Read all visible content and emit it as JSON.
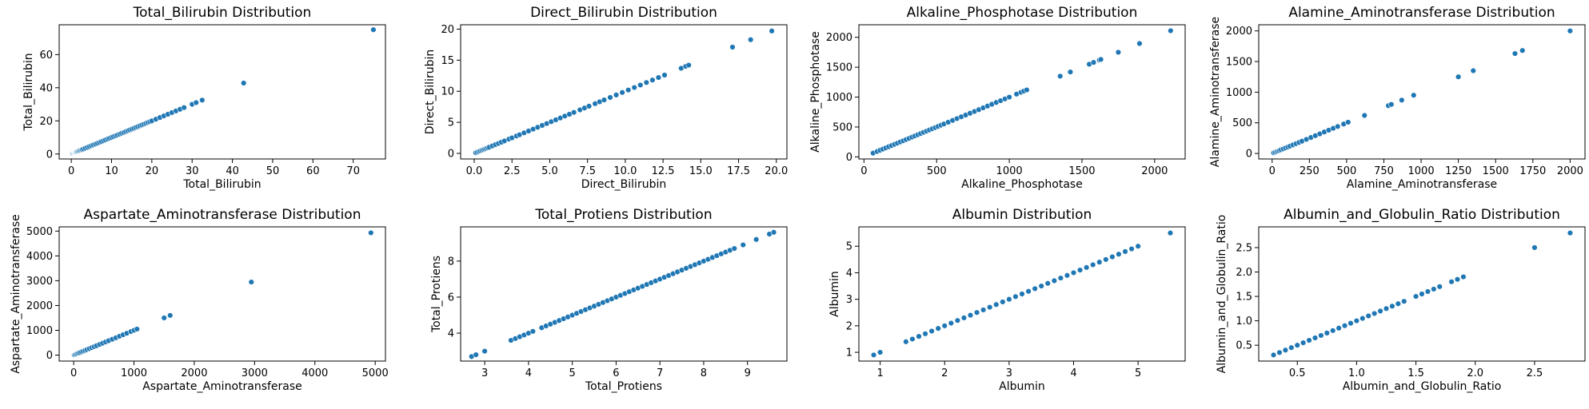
{
  "colors": {
    "point": "#1f77b4",
    "axis": "#000000",
    "background": "#ffffff"
  },
  "chart_data": [
    {
      "type": "scatter",
      "title": "Total_Bilirubin Distribution",
      "xlabel": "Total_Bilirubin",
      "ylabel": "Total_Bilirubin",
      "xlim": [
        -3.0,
        78.0
      ],
      "ylim": [
        -3.0,
        78.0
      ],
      "xticks": [
        0,
        10,
        20,
        30,
        40,
        50,
        60,
        70
      ],
      "yticks": [
        0,
        20,
        40,
        60
      ],
      "xticklabels": [
        "0",
        "10",
        "20",
        "30",
        "40",
        "50",
        "60",
        "70"
      ],
      "yticklabels": [
        "0",
        "20",
        "40",
        "60"
      ],
      "x": [
        0.4,
        0.6,
        0.7,
        0.8,
        0.9,
        1.0,
        1.1,
        1.2,
        1.3,
        1.4,
        1.6,
        1.8,
        2.0,
        2.2,
        2.5,
        2.7,
        3.0,
        3.5,
        4.0,
        4.5,
        5.0,
        5.5,
        6.0,
        6.5,
        7.0,
        7.5,
        8.0,
        8.5,
        9.0,
        9.5,
        10.0,
        10.5,
        11.0,
        11.5,
        12.0,
        12.5,
        13.0,
        13.5,
        14.0,
        14.5,
        15.0,
        15.5,
        16.0,
        16.5,
        17.0,
        17.5,
        18.0,
        18.5,
        19.0,
        19.5,
        20.0,
        21.0,
        22.0,
        23.0,
        24.0,
        25.0,
        26.0,
        27.0,
        28.0,
        30.0,
        31.0,
        32.5,
        42.8,
        75.0
      ],
      "y": [
        0.4,
        0.6,
        0.7,
        0.8,
        0.9,
        1.0,
        1.1,
        1.2,
        1.3,
        1.4,
        1.6,
        1.8,
        2.0,
        2.2,
        2.5,
        2.7,
        3.0,
        3.5,
        4.0,
        4.5,
        5.0,
        5.5,
        6.0,
        6.5,
        7.0,
        7.5,
        8.0,
        8.5,
        9.0,
        9.5,
        10.0,
        10.5,
        11.0,
        11.5,
        12.0,
        12.5,
        13.0,
        13.5,
        14.0,
        14.5,
        15.0,
        15.5,
        16.0,
        16.5,
        17.0,
        17.5,
        18.0,
        18.5,
        19.0,
        19.5,
        20.0,
        21.0,
        22.0,
        23.0,
        24.0,
        25.0,
        26.0,
        27.0,
        28.0,
        30.0,
        31.0,
        32.5,
        42.8,
        75.0
      ]
    },
    {
      "type": "scatter",
      "title": "Direct_Bilirubin Distribution",
      "xlabel": "Direct_Bilirubin",
      "ylabel": "Direct_Bilirubin",
      "xlim": [
        -0.9,
        20.7
      ],
      "ylim": [
        -0.9,
        20.7
      ],
      "xticks": [
        0,
        2.5,
        5,
        7.5,
        10,
        12.5,
        15,
        17.5,
        20
      ],
      "yticks": [
        0,
        5,
        10,
        15,
        20
      ],
      "xticklabels": [
        "0.0",
        "2.5",
        "5.0",
        "7.5",
        "10.0",
        "12.5",
        "15.0",
        "17.5",
        "20.0"
      ],
      "yticklabels": [
        "0",
        "5",
        "10",
        "15",
        "20"
      ],
      "x": [
        0.1,
        0.2,
        0.3,
        0.4,
        0.5,
        0.6,
        0.7,
        0.8,
        0.9,
        1.0,
        1.2,
        1.4,
        1.6,
        1.8,
        2.0,
        2.3,
        2.5,
        2.8,
        3.0,
        3.3,
        3.6,
        3.9,
        4.2,
        4.5,
        4.8,
        5.1,
        5.4,
        5.7,
        6.0,
        6.3,
        6.6,
        7.0,
        7.3,
        7.6,
        8.0,
        8.3,
        8.6,
        9.0,
        9.4,
        9.8,
        10.2,
        10.6,
        11.0,
        11.4,
        11.8,
        12.2,
        12.6,
        13.7,
        14.0,
        14.2,
        17.1,
        18.3,
        19.7
      ],
      "y": [
        0.1,
        0.2,
        0.3,
        0.4,
        0.5,
        0.6,
        0.7,
        0.8,
        0.9,
        1.0,
        1.2,
        1.4,
        1.6,
        1.8,
        2.0,
        2.3,
        2.5,
        2.8,
        3.0,
        3.3,
        3.6,
        3.9,
        4.2,
        4.5,
        4.8,
        5.1,
        5.4,
        5.7,
        6.0,
        6.3,
        6.6,
        7.0,
        7.3,
        7.6,
        8.0,
        8.3,
        8.6,
        9.0,
        9.4,
        9.8,
        10.2,
        10.6,
        11.0,
        11.4,
        11.8,
        12.2,
        12.6,
        13.7,
        14.0,
        14.2,
        17.1,
        18.3,
        19.7
      ]
    },
    {
      "type": "scatter",
      "title": "Alkaline_Phosphotase Distribution",
      "xlabel": "Alkaline_Phosphotase",
      "ylabel": "Alkaline_Phosphotase",
      "xlim": [
        -35,
        2210
      ],
      "ylim": [
        -35,
        2210
      ],
      "xticks": [
        0,
        500,
        1000,
        1500,
        2000
      ],
      "yticks": [
        0,
        500,
        1000,
        1500,
        2000
      ],
      "xticklabels": [
        "0",
        "500",
        "1000",
        "1500",
        "2000"
      ],
      "yticklabels": [
        "0",
        "500",
        "1000",
        "1500",
        "2000"
      ],
      "x": [
        63,
        90,
        110,
        130,
        150,
        170,
        190,
        210,
        230,
        250,
        270,
        290,
        310,
        330,
        350,
        370,
        390,
        410,
        430,
        450,
        470,
        490,
        510,
        530,
        550,
        580,
        610,
        640,
        670,
        700,
        730,
        760,
        790,
        820,
        850,
        880,
        910,
        940,
        970,
        1000,
        1050,
        1080,
        1100,
        1120,
        1350,
        1420,
        1550,
        1580,
        1620,
        1630,
        1750,
        1896,
        2110
      ],
      "y": [
        63,
        90,
        110,
        130,
        150,
        170,
        190,
        210,
        230,
        250,
        270,
        290,
        310,
        330,
        350,
        370,
        390,
        410,
        430,
        450,
        470,
        490,
        510,
        530,
        550,
        580,
        610,
        640,
        670,
        700,
        730,
        760,
        790,
        820,
        850,
        880,
        910,
        940,
        970,
        1000,
        1050,
        1080,
        1100,
        1120,
        1350,
        1420,
        1550,
        1580,
        1620,
        1630,
        1750,
        1896,
        2110
      ]
    },
    {
      "type": "scatter",
      "title": "Alamine_Aminotransferase Distribution",
      "xlabel": "Alamine_Aminotransferase",
      "ylabel": "Alamine_Aminotransferase",
      "xlim": [
        -90,
        2100
      ],
      "ylim": [
        -90,
        2100
      ],
      "xticks": [
        0,
        250,
        500,
        750,
        1000,
        1250,
        1500,
        1750,
        2000
      ],
      "yticks": [
        0,
        500,
        1000,
        1500,
        2000
      ],
      "xticklabels": [
        "0",
        "250",
        "500",
        "750",
        "1000",
        "1250",
        "1500",
        "1750",
        "2000"
      ],
      "yticklabels": [
        "0",
        "500",
        "1000",
        "1500",
        "2000"
      ],
      "x": [
        10,
        20,
        30,
        40,
        50,
        60,
        75,
        90,
        105,
        120,
        140,
        160,
        180,
        200,
        230,
        260,
        290,
        320,
        350,
        380,
        410,
        440,
        480,
        510,
        620,
        780,
        800,
        870,
        950,
        1250,
        1350,
        1630,
        1680,
        2000
      ],
      "y": [
        10,
        20,
        30,
        40,
        50,
        60,
        75,
        90,
        105,
        120,
        140,
        160,
        180,
        200,
        230,
        260,
        290,
        320,
        350,
        380,
        410,
        440,
        480,
        510,
        620,
        780,
        800,
        870,
        950,
        1250,
        1350,
        1630,
        1680,
        2000
      ]
    },
    {
      "type": "scatter",
      "title": "Aspartate_Aminotransferase Distribution",
      "xlabel": "Aspartate_Aminotransferase",
      "ylabel": "Aspartate_Aminotransferase",
      "xlim": [
        -240,
        5170
      ],
      "ylim": [
        -240,
        5170
      ],
      "xticks": [
        0,
        1000,
        2000,
        3000,
        4000,
        5000
      ],
      "yticks": [
        0,
        1000,
        2000,
        3000,
        4000,
        5000
      ],
      "xticklabels": [
        "0",
        "1000",
        "2000",
        "3000",
        "4000",
        "5000"
      ],
      "yticklabels": [
        "0",
        "1000",
        "2000",
        "3000",
        "4000",
        "5000"
      ],
      "x": [
        10,
        25,
        40,
        60,
        80,
        100,
        130,
        160,
        190,
        220,
        260,
        300,
        340,
        380,
        430,
        480,
        530,
        580,
        640,
        700,
        760,
        820,
        880,
        950,
        1000,
        1050,
        1500,
        1600,
        2946,
        4929
      ],
      "y": [
        10,
        25,
        40,
        60,
        80,
        100,
        130,
        160,
        190,
        220,
        260,
        300,
        340,
        380,
        430,
        480,
        530,
        580,
        640,
        700,
        760,
        820,
        880,
        950,
        1000,
        1050,
        1500,
        1600,
        2946,
        4929
      ]
    },
    {
      "type": "scatter",
      "title": "Total_Protiens Distribution",
      "xlabel": "Total_Protiens",
      "ylabel": "Total_Protiens",
      "xlim": [
        2.45,
        9.9
      ],
      "ylim": [
        2.45,
        9.9
      ],
      "xticks": [
        3,
        4,
        5,
        6,
        7,
        8,
        9
      ],
      "yticks": [
        4,
        6,
        8
      ],
      "xticklabels": [
        "3",
        "4",
        "5",
        "6",
        "7",
        "8",
        "9"
      ],
      "yticklabels": [
        "4",
        "6",
        "8"
      ],
      "x": [
        2.7,
        2.8,
        3.0,
        3.6,
        3.7,
        3.8,
        3.9,
        4.0,
        4.1,
        4.3,
        4.4,
        4.5,
        4.6,
        4.7,
        4.8,
        4.9,
        5.0,
        5.1,
        5.2,
        5.3,
        5.4,
        5.5,
        5.6,
        5.7,
        5.8,
        5.9,
        6.0,
        6.1,
        6.2,
        6.3,
        6.4,
        6.5,
        6.6,
        6.7,
        6.8,
        6.9,
        7.0,
        7.1,
        7.2,
        7.3,
        7.4,
        7.5,
        7.6,
        7.7,
        7.8,
        7.9,
        8.0,
        8.1,
        8.2,
        8.3,
        8.4,
        8.5,
        8.6,
        8.7,
        8.9,
        9.2,
        9.5,
        9.6
      ],
      "y": [
        2.7,
        2.8,
        3.0,
        3.6,
        3.7,
        3.8,
        3.9,
        4.0,
        4.1,
        4.3,
        4.4,
        4.5,
        4.6,
        4.7,
        4.8,
        4.9,
        5.0,
        5.1,
        5.2,
        5.3,
        5.4,
        5.5,
        5.6,
        5.7,
        5.8,
        5.9,
        6.0,
        6.1,
        6.2,
        6.3,
        6.4,
        6.5,
        6.6,
        6.7,
        6.8,
        6.9,
        7.0,
        7.1,
        7.2,
        7.3,
        7.4,
        7.5,
        7.6,
        7.7,
        7.8,
        7.9,
        8.0,
        8.1,
        8.2,
        8.3,
        8.4,
        8.5,
        8.6,
        8.7,
        8.9,
        9.2,
        9.5,
        9.6
      ]
    },
    {
      "type": "scatter",
      "title": "Albumin Distribution",
      "xlabel": "Albumin",
      "ylabel": "Albumin",
      "xlim": [
        0.67,
        5.73
      ],
      "ylim": [
        0.67,
        5.73
      ],
      "xticks": [
        1,
        2,
        3,
        4,
        5
      ],
      "yticks": [
        1,
        2,
        3,
        4,
        5
      ],
      "xticklabels": [
        "1",
        "2",
        "3",
        "4",
        "5"
      ],
      "yticklabels": [
        "1",
        "2",
        "3",
        "4",
        "5"
      ],
      "x": [
        0.9,
        1.0,
        1.4,
        1.5,
        1.6,
        1.7,
        1.8,
        1.9,
        2.0,
        2.1,
        2.2,
        2.3,
        2.4,
        2.5,
        2.6,
        2.7,
        2.8,
        2.9,
        3.0,
        3.1,
        3.2,
        3.3,
        3.4,
        3.5,
        3.6,
        3.7,
        3.8,
        3.9,
        4.0,
        4.1,
        4.2,
        4.3,
        4.4,
        4.5,
        4.6,
        4.7,
        4.8,
        4.9,
        5.0,
        5.5
      ],
      "y": [
        0.9,
        1.0,
        1.4,
        1.5,
        1.6,
        1.7,
        1.8,
        1.9,
        2.0,
        2.1,
        2.2,
        2.3,
        2.4,
        2.5,
        2.6,
        2.7,
        2.8,
        2.9,
        3.0,
        3.1,
        3.2,
        3.3,
        3.4,
        3.5,
        3.6,
        3.7,
        3.8,
        3.9,
        4.0,
        4.1,
        4.2,
        4.3,
        4.4,
        4.5,
        4.6,
        4.7,
        4.8,
        4.9,
        5.0,
        5.5
      ]
    },
    {
      "type": "scatter",
      "title": "Albumin_and_Globulin_Ratio Distribution",
      "xlabel": "Albumin_and_Globulin_Ratio",
      "ylabel": "Albumin_and_Globulin_Ratio",
      "xlim": [
        0.175,
        2.925
      ],
      "ylim": [
        0.175,
        2.925
      ],
      "xticks": [
        0.5,
        1.0,
        1.5,
        2.0,
        2.5
      ],
      "yticks": [
        0.5,
        1.0,
        1.5,
        2.0,
        2.5
      ],
      "xticklabels": [
        "0.5",
        "1.0",
        "1.5",
        "2.0",
        "2.5"
      ],
      "yticklabels": [
        "0.5",
        "1.0",
        "1.5",
        "2.0",
        "2.5"
      ],
      "x": [
        0.3,
        0.35,
        0.4,
        0.45,
        0.5,
        0.55,
        0.6,
        0.65,
        0.7,
        0.75,
        0.8,
        0.85,
        0.9,
        0.95,
        1.0,
        1.05,
        1.1,
        1.15,
        1.2,
        1.25,
        1.3,
        1.35,
        1.4,
        1.5,
        1.55,
        1.6,
        1.65,
        1.7,
        1.8,
        1.85,
        1.9,
        2.5,
        2.8
      ],
      "y": [
        0.3,
        0.35,
        0.4,
        0.45,
        0.5,
        0.55,
        0.6,
        0.65,
        0.7,
        0.75,
        0.8,
        0.85,
        0.9,
        0.95,
        1.0,
        1.05,
        1.1,
        1.15,
        1.2,
        1.25,
        1.3,
        1.35,
        1.4,
        1.5,
        1.55,
        1.6,
        1.65,
        1.7,
        1.8,
        1.85,
        1.9,
        2.5,
        2.8
      ]
    }
  ]
}
